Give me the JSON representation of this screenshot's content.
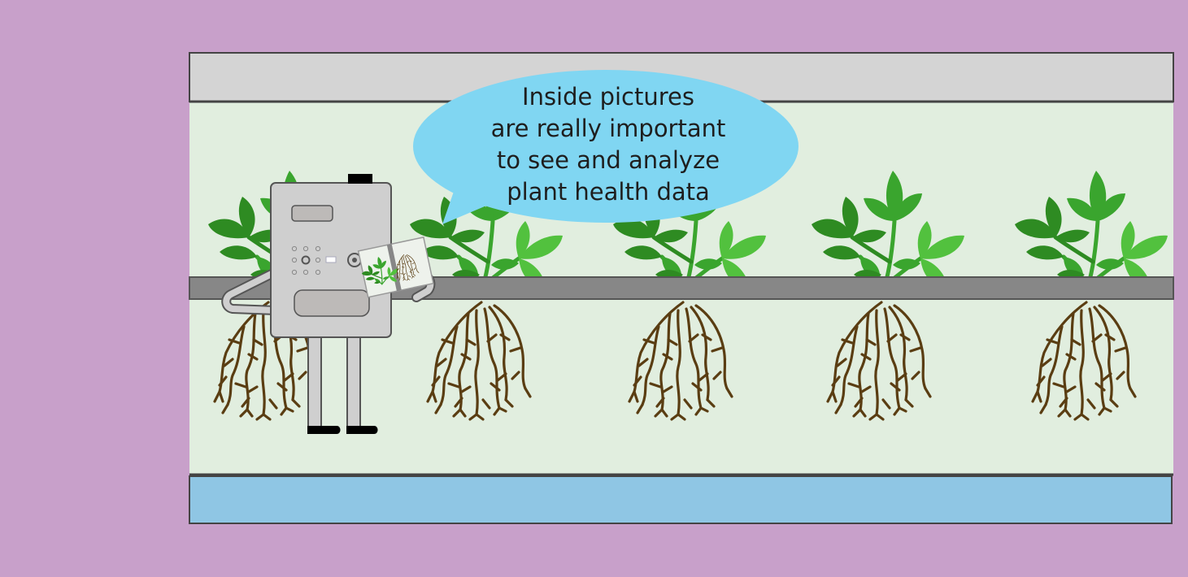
{
  "speech": {
    "lines": [
      "Inside pictures",
      "are really important",
      "to see and analyze",
      "plant health data"
    ]
  },
  "colors": {
    "background": "#c8a0ca",
    "ceiling": "#d4d4d4",
    "chamber": "#e1eedf",
    "bench": "#878787",
    "reservoir": "#8fc6e4",
    "bubble": "#80d6f2",
    "leaf_dark": "#2e8b22",
    "leaf_mid": "#3aa52e",
    "leaf_light": "#52c13e",
    "root": "#5a3d12",
    "robot_body": "#cfcfcf"
  },
  "scene": {
    "plant_count": 5,
    "robot": "imaging-robot",
    "held_item": "plant-photo"
  }
}
